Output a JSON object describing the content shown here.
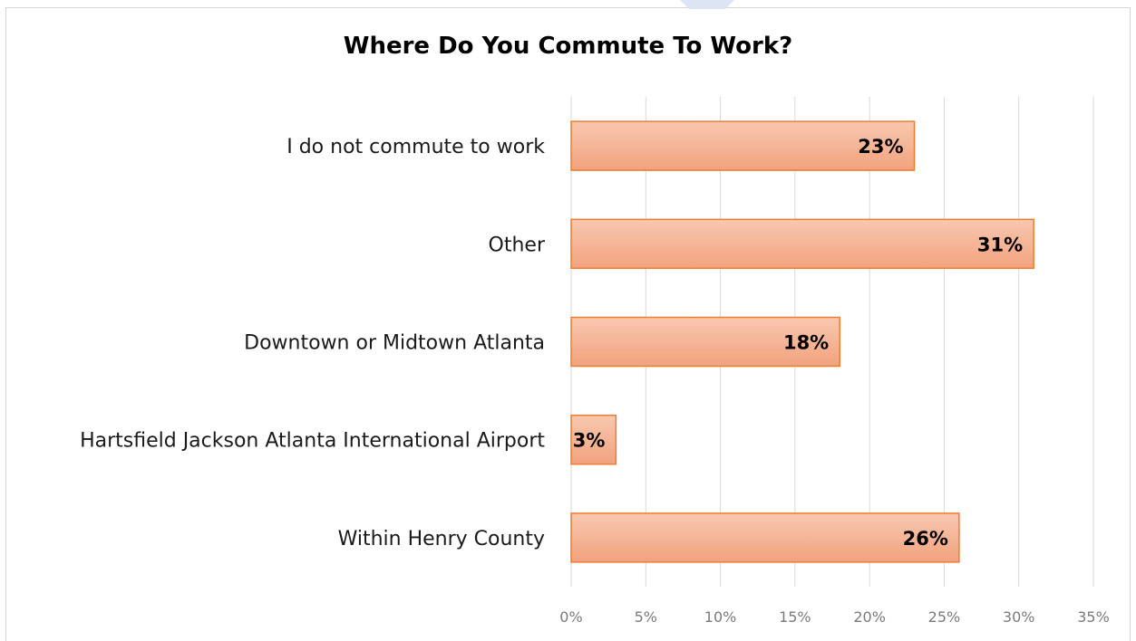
{
  "chart_data": {
    "type": "bar",
    "orientation": "horizontal",
    "title": "Where Do You Commute To Work?",
    "categories": [
      "I do not commute to work",
      "Other",
      "Downtown or Midtown Atlanta",
      "Hartsfield Jackson Atlanta International Airport",
      "Within Henry County"
    ],
    "values": [
      23,
      31,
      18,
      3,
      26
    ],
    "value_labels": [
      "23%",
      "31%",
      "18%",
      "3%",
      "26%"
    ],
    "xlim": [
      0,
      35
    ],
    "x_ticks": [
      0,
      5,
      10,
      15,
      20,
      25,
      30,
      35
    ],
    "x_tick_labels": [
      "0%",
      "5%",
      "10%",
      "15%",
      "20%",
      "25%",
      "30%",
      "35%"
    ],
    "xlabel": "",
    "ylabel": "",
    "grid": true,
    "legend": "none",
    "colors": {
      "bar_top": "#f8c8b0",
      "bar_bottom": "#f2a27e",
      "bar_border": "#ed7d31",
      "grid": "#d9d9d9",
      "accent": "#b4c7e7"
    }
  }
}
